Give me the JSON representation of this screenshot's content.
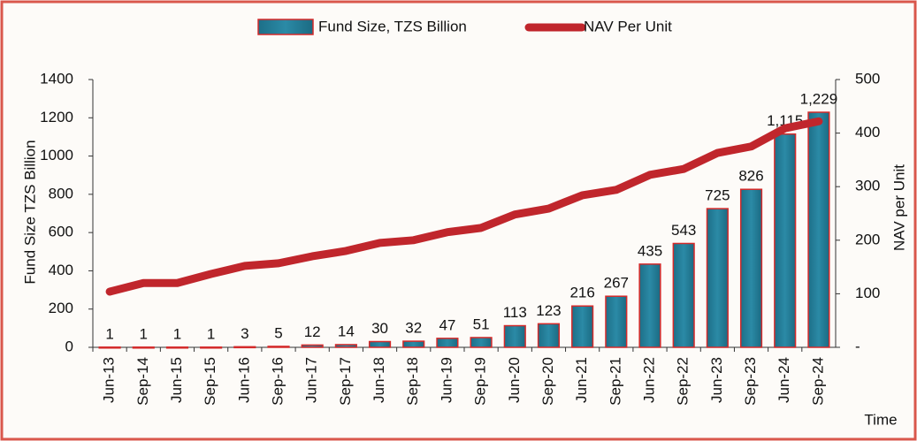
{
  "chart_data": {
    "type": "bar_line",
    "categories": [
      "Jun-13",
      "Sep-14",
      "Jun-15",
      "Sep-15",
      "Jun-16",
      "Sep-16",
      "Jun-17",
      "Sep-17",
      "Jun-18",
      "Sep-18",
      "Jun-19",
      "Sep-19",
      "Jun-20",
      "Sep-20",
      "Jun-21",
      "Sep-21",
      "Jun-22",
      "Sep-22",
      "Jun-23",
      "Sep-23",
      "Jun-24",
      "Sep-24"
    ],
    "series": [
      {
        "name": "Fund Size, TZS Billion",
        "type": "bar",
        "color": "#2b8aa6",
        "edge_color": "#d42a2a",
        "values": [
          1,
          1,
          1,
          1,
          3,
          5,
          12,
          14,
          30,
          32,
          47,
          51,
          113,
          123,
          216,
          267,
          435,
          543,
          725,
          826,
          1115,
          1229
        ],
        "value_labels": [
          "1",
          "1",
          "1",
          "1",
          "3",
          "5",
          "12",
          "14",
          "30",
          "32",
          "47",
          "51",
          "113",
          "123",
          "216",
          "267",
          "435",
          "543",
          "725",
          "826",
          "1,115",
          "1,229"
        ]
      },
      {
        "name": "NAV Per Unit",
        "type": "line",
        "axis": "y2",
        "color": "#c0262c",
        "values": [
          104,
          120,
          120,
          137,
          152,
          157,
          170,
          180,
          195,
          200,
          215,
          223,
          248,
          259,
          284,
          294,
          322,
          333,
          363,
          375,
          409,
          422
        ]
      }
    ],
    "ylabel": "Fund Size TZS Billion",
    "y2label": "NAV per Unit",
    "xlabel": "Time",
    "ylim": [
      0,
      1400
    ],
    "yticks": [
      0,
      200,
      400,
      600,
      800,
      1000,
      1200,
      1400
    ],
    "y2lim": [
      0,
      500
    ],
    "y2ticks": [
      {
        "value": 0,
        "label": "-"
      },
      100,
      200,
      300,
      400,
      500
    ],
    "legend": "top"
  }
}
